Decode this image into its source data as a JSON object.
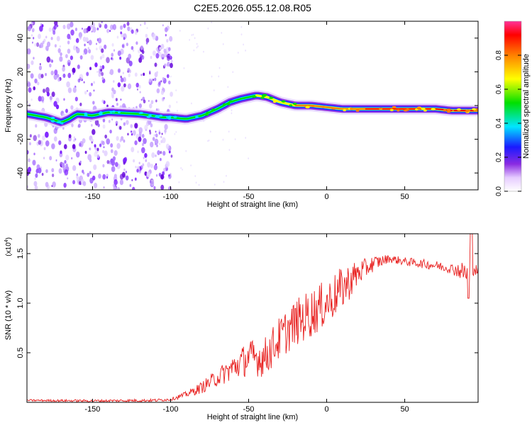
{
  "title": "C2E5.2026.055.12.08.R05",
  "colors": {
    "spec_purple": "#7b1fff",
    "spec_light": "#c9a6ff",
    "snr_line": "#e8201f",
    "axis": "#000000"
  },
  "chart_data": [
    {
      "type": "heatmap",
      "name": "spectrogram",
      "xlabel": "Height of straight line (km)",
      "ylabel": "Frequency (Hz)",
      "xlim": [
        -192,
        97
      ],
      "ylim": [
        -50,
        50
      ],
      "xticks": [
        -150,
        -100,
        -50,
        0,
        50
      ],
      "xtick_labels": [
        "-150",
        "-100",
        "-50",
        "0",
        "50"
      ],
      "yticks": [
        -40,
        -20,
        0,
        20,
        40
      ],
      "ytick_labels": [
        "-40",
        "-20",
        "0",
        "20",
        "40"
      ],
      "noise_region_km": [
        -192,
        -100
      ],
      "ridge": {
        "x": [
          -192,
          -180,
          -170,
          -165,
          -160,
          -150,
          -140,
          -120,
          -112,
          -105,
          -100,
          -90,
          -80,
          -70,
          -62,
          -55,
          -45,
          -38,
          -30,
          -20,
          -10,
          0,
          10,
          20,
          40,
          60,
          70,
          80,
          90,
          97
        ],
        "y": [
          -5,
          -7,
          -10,
          -8,
          -5,
          -6,
          -4,
          -5,
          -6,
          -7,
          -7,
          -8,
          -6,
          -2,
          2,
          4,
          6,
          5,
          2,
          0,
          0,
          -1,
          -2,
          -2,
          -2,
          -2,
          -2,
          -3,
          -3,
          -3
        ]
      },
      "colorbar": {
        "label": "Normalized spectral amplitude",
        "range": [
          0,
          1
        ],
        "ticks": [
          0.0,
          0.2,
          0.4,
          0.6,
          0.8
        ],
        "tick_labels": [
          "0.0",
          "0.2",
          "0.4",
          "0.6",
          "0.8"
        ]
      }
    },
    {
      "type": "line",
      "name": "snr",
      "xlabel": "Height of straight line (km)",
      "ylabel": "SNR (10 * v/v)",
      "y_exponent_label": "(x10",
      "y_exponent_power": "4",
      "y_exponent_close": ")",
      "xlim": [
        -192,
        97
      ],
      "ylim": [
        0,
        17000
      ],
      "xticks": [
        -150,
        -100,
        -50,
        0,
        50
      ],
      "xtick_labels": [
        "-150",
        "-100",
        "-50",
        "0",
        "50"
      ],
      "yticks": [
        5000,
        10000,
        15000
      ],
      "ytick_labels": [
        "0.5",
        "1.0",
        "1.5"
      ],
      "envelope": {
        "x": [
          -192,
          -150,
          -110,
          -100,
          -90,
          -80,
          -70,
          -60,
          -50,
          -40,
          -30,
          -20,
          -10,
          0,
          10,
          20,
          30,
          40,
          50,
          60,
          70,
          80,
          85,
          90,
          92,
          95,
          97
        ],
        "y": [
          200,
          150,
          200,
          300,
          800,
          1500,
          2500,
          3500,
          4500,
          4500,
          6500,
          8000,
          9000,
          10000,
          11500,
          13000,
          14000,
          14500,
          14200,
          14000,
          13800,
          13500,
          13300,
          13000,
          14000,
          13400,
          13200
        ]
      },
      "spread": {
        "x": [
          -192,
          -100,
          -90,
          -70,
          -50,
          -30,
          -10,
          10,
          25,
          40,
          80,
          90,
          97
        ],
        "y": [
          100,
          150,
          300,
          900,
          1800,
          2200,
          2500,
          2200,
          1000,
          400,
          500,
          1200,
          500
        ]
      }
    }
  ]
}
